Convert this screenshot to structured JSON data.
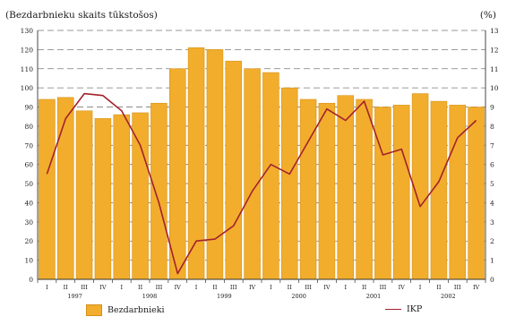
{
  "chart_data": {
    "type": "bar+line",
    "title_left": "(Bezdarbnieku skaits tūkstošos)",
    "title_right": "(%)",
    "ylim_left": [
      0,
      130
    ],
    "yticks_left": [
      0,
      10,
      20,
      30,
      40,
      50,
      60,
      70,
      80,
      90,
      100,
      110,
      120,
      130
    ],
    "ylim_right": [
      0,
      13
    ],
    "yticks_right": [
      0,
      1,
      2,
      3,
      4,
      5,
      6,
      7,
      8,
      9,
      10,
      11,
      12,
      13
    ],
    "quarter_labels": [
      "I",
      "II",
      "III",
      "IV",
      "I",
      "II",
      "III",
      "IV",
      "I",
      "II",
      "III",
      "IV",
      "I",
      "II",
      "III",
      "IV",
      "I",
      "II",
      "III",
      "IV",
      "I",
      "II",
      "III",
      "IV"
    ],
    "year_labels": [
      "1997",
      "1998",
      "1999",
      "2000",
      "2001",
      "2002"
    ],
    "series": [
      {
        "name": "Bezdarbnieki",
        "type": "bar",
        "axis": "left",
        "color": "#f2ad2d",
        "values": [
          94,
          95,
          88,
          84,
          86,
          87,
          92,
          110,
          121,
          120,
          114,
          110,
          108,
          100,
          94,
          92,
          96,
          94,
          90,
          91,
          97,
          93,
          91,
          90
        ]
      },
      {
        "name": "IKP",
        "type": "line",
        "axis": "right",
        "color": "#a3222c",
        "values": [
          5.5,
          8.4,
          9.7,
          9.6,
          8.8,
          7.0,
          4.0,
          0.3,
          2.0,
          2.1,
          2.8,
          4.6,
          6.0,
          5.5,
          7.2,
          8.9,
          8.3,
          9.3,
          6.5,
          6.8,
          3.8,
          5.1,
          7.4,
          8.3
        ]
      }
    ],
    "grid": true,
    "grid_style": "dashed",
    "legend_position": "bottom"
  }
}
